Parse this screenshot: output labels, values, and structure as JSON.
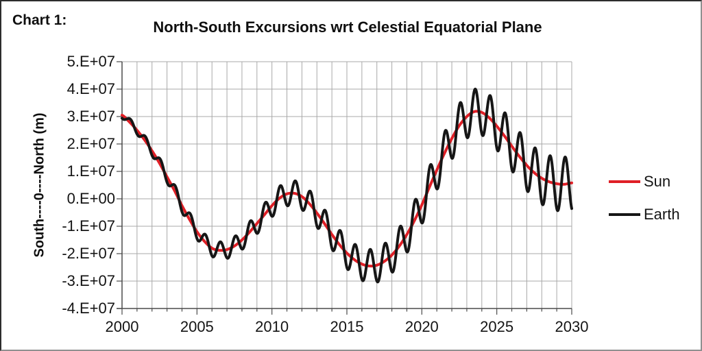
{
  "header": {
    "chart_label": "Chart 1:",
    "title": "North-South Excursions wrt Celestial Equatorial Plane"
  },
  "chart_data": {
    "type": "line",
    "title": "North-South Excursions wrt Celestial Equatorial Plane",
    "xlabel": "",
    "ylabel": "South----0----North (m)",
    "xlim": [
      2000,
      2030
    ],
    "ylim": [
      -4,
      5
    ],
    "value_unit": "1e7 m (axis values shown in scientific notation)",
    "grid": true,
    "legend_position": "right",
    "x_ticks": [
      2000,
      2005,
      2010,
      2015,
      2020,
      2025,
      2030
    ],
    "x_tick_step": 5,
    "x_minor_tick_step": 1,
    "y_ticks": [
      "5.E+07",
      "4.E+07",
      "3.E+07",
      "2.E+07",
      "1.E+07",
      "0.E+00",
      "-1.E+07",
      "-2.E+07",
      "-3.E+07",
      "-4.E+07"
    ],
    "colors": {
      "grid": "#a8a8a8",
      "axis": "#4a4a4a"
    },
    "series": {
      "sun": {
        "name": "Sun",
        "color": "#df1f26",
        "unit": "1e7 m",
        "x_start": 2000,
        "x_step": 0.5,
        "values": [
          3.05,
          2.8,
          2.5,
          2.15,
          1.75,
          1.3,
          0.8,
          0.3,
          -0.25,
          -0.75,
          -1.2,
          -1.55,
          -1.8,
          -1.88,
          -1.85,
          -1.72,
          -1.5,
          -1.22,
          -0.9,
          -0.58,
          -0.25,
          0.02,
          0.18,
          0.2,
          0.08,
          -0.18,
          -0.52,
          -0.9,
          -1.3,
          -1.67,
          -1.98,
          -2.22,
          -2.38,
          -2.45,
          -2.42,
          -2.28,
          -2.05,
          -1.72,
          -1.3,
          -0.8,
          -0.22,
          0.42,
          1.05,
          1.65,
          2.2,
          2.67,
          3.0,
          3.18,
          3.15,
          2.95,
          2.65,
          2.3,
          1.92,
          1.55,
          1.22,
          0.95,
          0.75,
          0.62,
          0.55,
          0.53,
          0.58
        ]
      },
      "earth": {
        "name": "Earth",
        "color": "#161616",
        "model": "sun_plus_annual_oscillation",
        "description": "Earth curve equals Sun curve plus an annual sine whose amplitude grows over time; peaks reach ~4.0E7 near 2023, troughs ~-3.0E7 near 2017",
        "amplitude_at_2000": 0.12,
        "amplitude_growth_per_year": 0.0295,
        "annual_sine_phase_year": 2000.31
      }
    }
  },
  "legend": {
    "items": [
      {
        "label": "Sun",
        "color": "#df1f26"
      },
      {
        "label": "Earth",
        "color": "#161616"
      }
    ]
  }
}
